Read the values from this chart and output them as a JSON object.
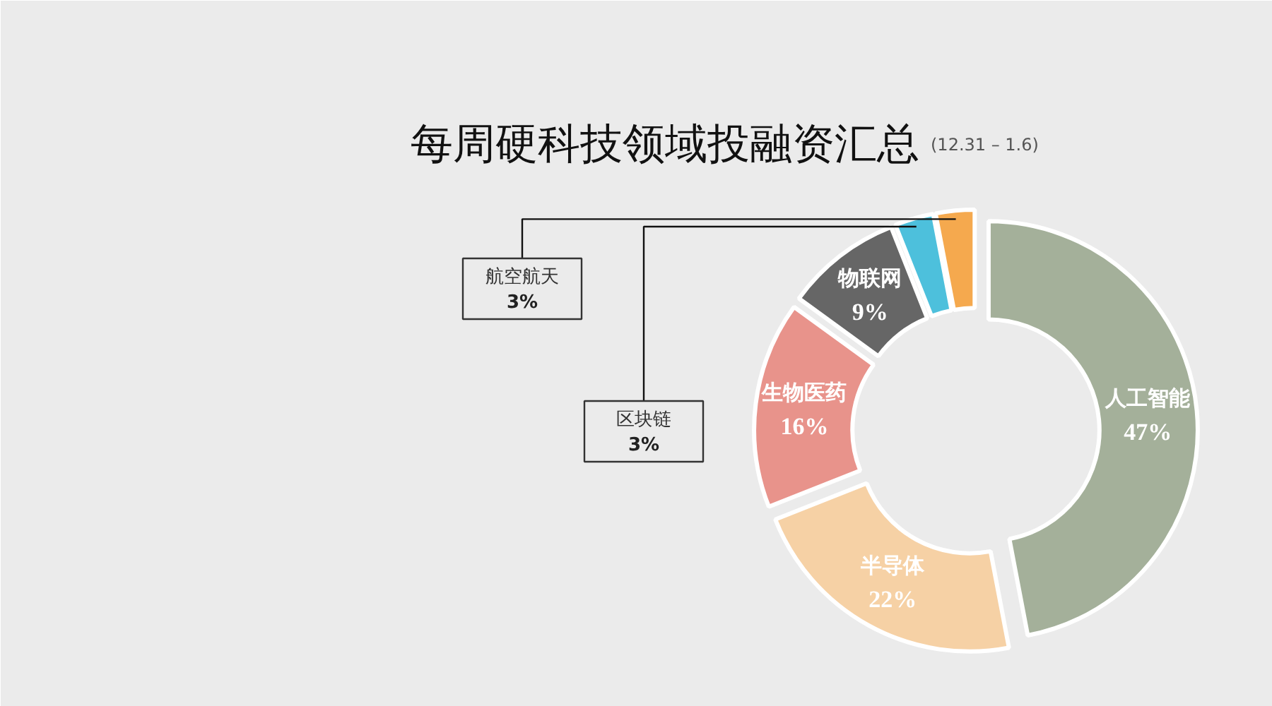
{
  "chart_data": {
    "type": "donut",
    "title": "每周硬科技领域投融资汇总",
    "subtitle": "(12.31 – 1.6)",
    "categories": [
      "人工智能",
      "半导体",
      "生物医药",
      "物联网",
      "区块链",
      "航空航天"
    ],
    "values": [
      47,
      22,
      16,
      9,
      3,
      3
    ],
    "colors": [
      "#a4b09a",
      "#f6d1a5",
      "#e8938b",
      "#666666",
      "#4dc0dc",
      "#f5a94e"
    ],
    "value_labels": [
      "47%",
      "22%",
      "16%",
      "9%",
      "3%",
      "3%"
    ]
  }
}
